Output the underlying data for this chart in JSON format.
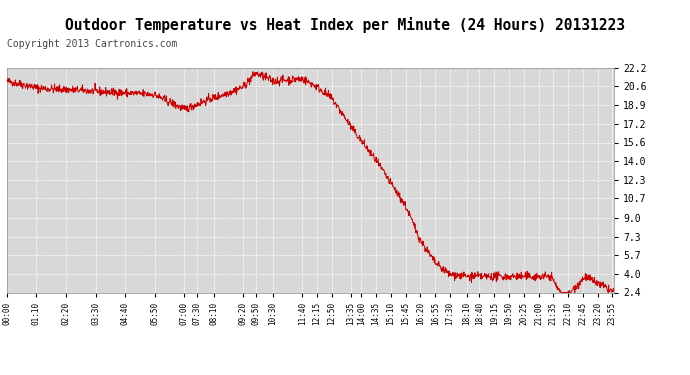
{
  "title": "Outdoor Temperature vs Heat Index per Minute (24 Hours) 20131223",
  "copyright": "Copyright 2013 Cartronics.com",
  "ylabel_right_ticks": [
    22.2,
    20.6,
    18.9,
    17.2,
    15.6,
    14.0,
    12.3,
    10.7,
    9.0,
    7.3,
    5.7,
    4.0,
    2.4
  ],
  "ytick_labels": [
    "22.2",
    "20.6",
    "18.9",
    "17.2",
    "15.6",
    "14.0",
    "12.3",
    "10.7",
    "9.0",
    "7.3",
    "5.7",
    "4.0",
    "2.4"
  ],
  "xlabels": [
    "00:00",
    "01:10",
    "02:20",
    "03:30",
    "04:40",
    "05:50",
    "07:00",
    "07:30",
    "08:10",
    "09:20",
    "09:50",
    "10:30",
    "11:40",
    "12:15",
    "12:50",
    "13:35",
    "14:00",
    "14:35",
    "15:10",
    "15:45",
    "16:20",
    "16:55",
    "17:30",
    "18:10",
    "18:40",
    "19:15",
    "19:50",
    "20:25",
    "21:00",
    "21:35",
    "22:10",
    "22:45",
    "23:20",
    "23:55"
  ],
  "bg_color": "#ffffff",
  "plot_bg_color": "#d8d8d8",
  "grid_color": "#ffffff",
  "temp_color": "#cc0000",
  "legend_heat_bg": "#0000cc",
  "legend_temp_bg": "#cc0000",
  "legend_text_color": "#ffffff",
  "ymin": 2.4,
  "ymax": 22.2,
  "title_fontsize": 10.5,
  "copyright_fontsize": 7
}
